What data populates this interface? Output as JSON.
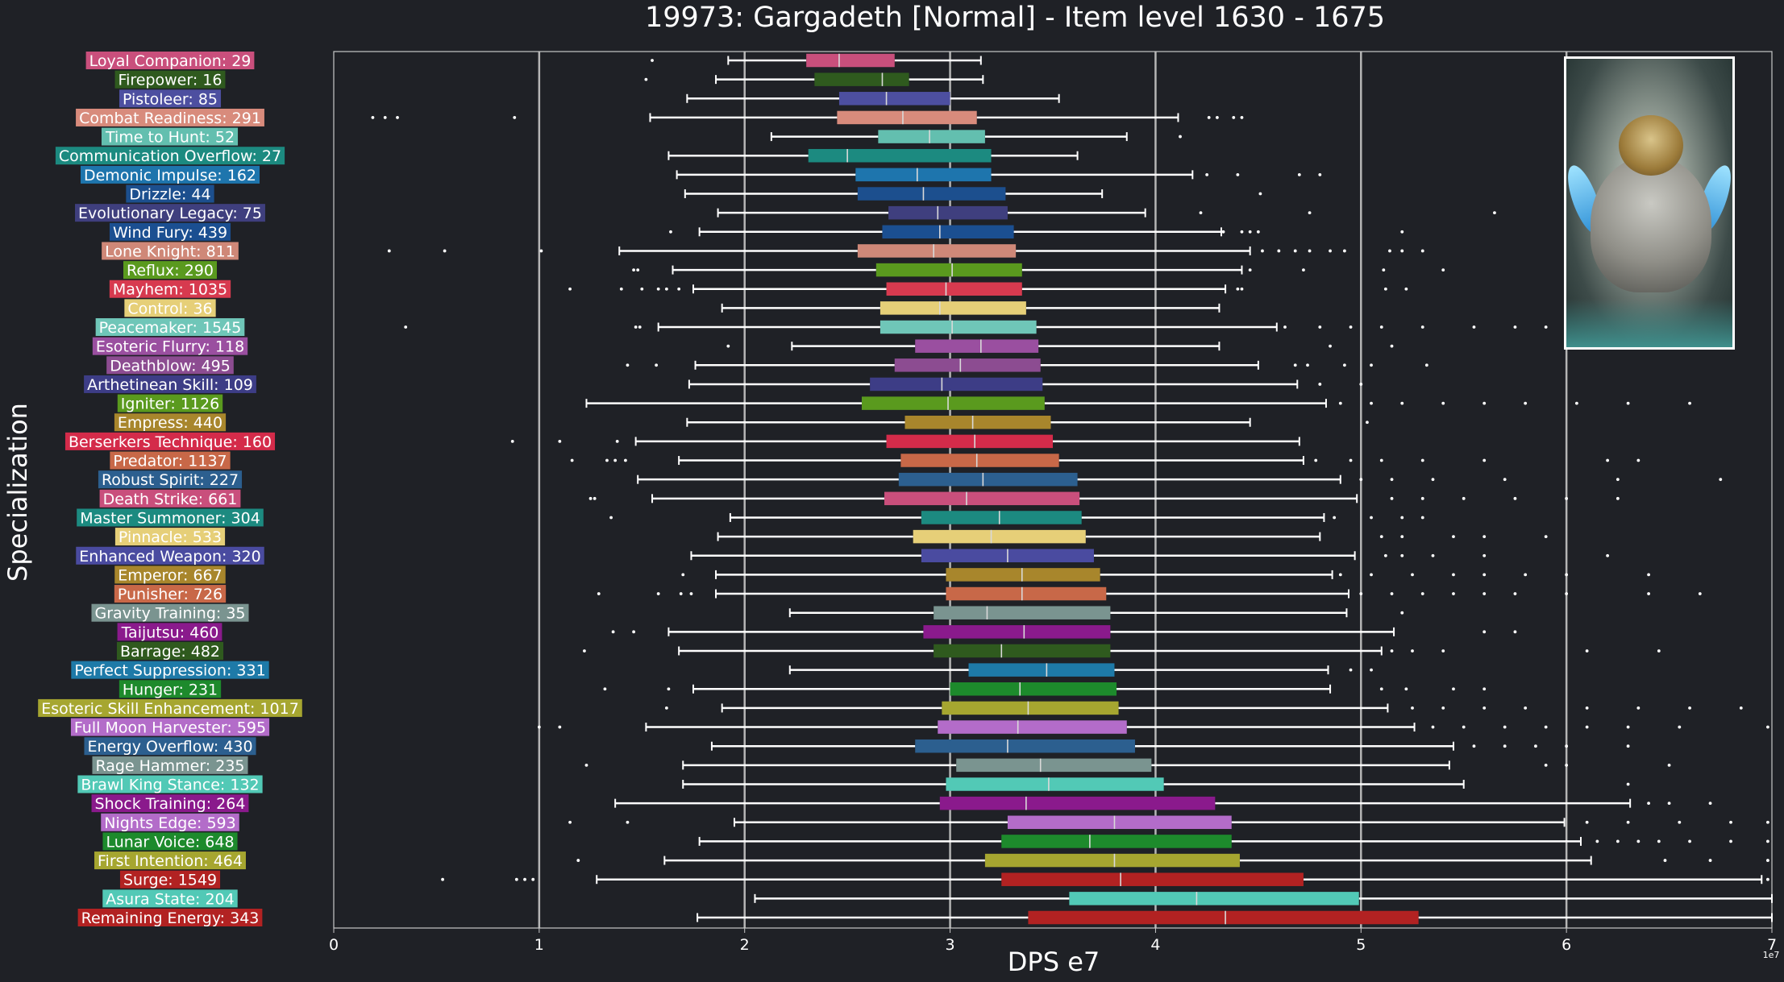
{
  "chart_data": {
    "type": "box",
    "title": "19973: Gargadeth [Normal] - Item level 1630 - 1675",
    "xlabel": "DPS e7",
    "ylabel": "Specialization",
    "x_exponent": "1e7",
    "xlim": [
      0,
      7
    ],
    "x_ticks": [
      "0",
      "1",
      "2",
      "3",
      "4",
      "5",
      "6",
      "7"
    ],
    "grid": "vertical",
    "categories": [
      {
        "label": "Loyal Companion: 29",
        "color": "#c94f7c",
        "whisker_low": 1.92,
        "q1": 2.3,
        "median": 2.46,
        "q3": 2.73,
        "whisker_high": 3.15,
        "outliers": [
          1.55
        ]
      },
      {
        "label": "Firepower: 16",
        "color": "#2f5a1e",
        "whisker_low": 1.86,
        "q1": 2.34,
        "median": 2.67,
        "q3": 2.8,
        "whisker_high": 3.16,
        "outliers": [
          1.52
        ]
      },
      {
        "label": "Pistoleer: 85",
        "color": "#4d4fa0",
        "whisker_low": 1.72,
        "q1": 2.46,
        "median": 2.69,
        "q3": 3.0,
        "whisker_high": 3.53,
        "outliers": []
      },
      {
        "label": "Combat Readiness: 291",
        "color": "#d88b7c",
        "whisker_low": 1.54,
        "q1": 2.45,
        "median": 2.77,
        "q3": 3.13,
        "whisker_high": 4.11,
        "outliers": [
          0.19,
          0.25,
          0.31,
          0.88,
          4.26,
          4.3,
          4.38,
          4.42
        ]
      },
      {
        "label": "Time to Hunt: 52",
        "color": "#63bfaf",
        "whisker_low": 2.13,
        "q1": 2.65,
        "median": 2.9,
        "q3": 3.17,
        "whisker_high": 3.86,
        "outliers": [
          4.12
        ]
      },
      {
        "label": "Communication Overflow: 27",
        "color": "#1c8a80",
        "whisker_low": 1.63,
        "q1": 2.31,
        "median": 2.5,
        "q3": 3.2,
        "whisker_high": 3.62,
        "outliers": []
      },
      {
        "label": "Demonic Impulse: 162",
        "color": "#1e75ad",
        "whisker_low": 1.67,
        "q1": 2.54,
        "median": 2.84,
        "q3": 3.2,
        "whisker_high": 4.18,
        "outliers": [
          4.25,
          4.4,
          4.7,
          4.8
        ]
      },
      {
        "label": "Drizzle: 44",
        "color": "#1c4f8e",
        "whisker_low": 1.71,
        "q1": 2.55,
        "median": 2.87,
        "q3": 3.27,
        "whisker_high": 3.74,
        "outliers": [
          4.51
        ]
      },
      {
        "label": "Evolutionary Legacy: 75",
        "color": "#3f3f7e",
        "whisker_low": 1.87,
        "q1": 2.7,
        "median": 2.94,
        "q3": 3.28,
        "whisker_high": 3.95,
        "outliers": [
          4.22,
          4.75,
          5.65
        ]
      },
      {
        "label": "Wind Fury: 439",
        "color": "#1b4f91",
        "whisker_low": 1.78,
        "q1": 2.67,
        "median": 2.95,
        "q3": 3.31,
        "whisker_high": 4.32,
        "outliers": [
          1.64,
          4.33,
          4.42,
          4.46,
          4.5,
          5.2
        ]
      },
      {
        "label": "Lone Knight: 811",
        "color": "#cf8878",
        "whisker_low": 1.39,
        "q1": 2.55,
        "median": 2.92,
        "q3": 3.32,
        "whisker_high": 4.46,
        "outliers": [
          0.27,
          0.54,
          1.01,
          4.52,
          4.6,
          4.68,
          4.75,
          4.85,
          4.92,
          5.14,
          5.2,
          5.3
        ]
      },
      {
        "label": "Reflux: 290",
        "color": "#5a9a1e",
        "whisker_low": 1.65,
        "q1": 2.64,
        "median": 3.01,
        "q3": 3.35,
        "whisker_high": 4.42,
        "outliers": [
          1.46,
          1.48,
          4.46,
          4.72,
          5.11,
          5.4
        ]
      },
      {
        "label": "Mayhem: 1035",
        "color": "#d73a4f",
        "whisker_low": 1.75,
        "q1": 2.69,
        "median": 2.98,
        "q3": 3.35,
        "whisker_high": 4.34,
        "outliers": [
          1.15,
          1.4,
          1.5,
          1.58,
          1.62,
          1.68,
          4.4,
          4.42,
          5.12,
          5.22
        ]
      },
      {
        "label": "Control: 36",
        "color": "#e6cf78",
        "whisker_low": 1.89,
        "q1": 2.66,
        "median": 2.95,
        "q3": 3.37,
        "whisker_high": 4.31,
        "outliers": []
      },
      {
        "label": "Peacemaker: 1545",
        "color": "#6fc6b8",
        "whisker_low": 1.58,
        "q1": 2.66,
        "median": 3.01,
        "q3": 3.42,
        "whisker_high": 4.59,
        "outliers": [
          0.35,
          1.47,
          1.49,
          4.63,
          4.8,
          4.95,
          5.1,
          5.3,
          5.55,
          5.75,
          5.9
        ]
      },
      {
        "label": "Esoteric Flurry: 118",
        "color": "#9a4fa0",
        "whisker_low": 2.23,
        "q1": 2.83,
        "median": 3.15,
        "q3": 3.43,
        "whisker_high": 4.31,
        "outliers": [
          1.92,
          4.85,
          5.15
        ]
      },
      {
        "label": "Deathblow: 495",
        "color": "#8c4c91",
        "whisker_low": 1.76,
        "q1": 2.73,
        "median": 3.05,
        "q3": 3.44,
        "whisker_high": 4.5,
        "outliers": [
          1.43,
          1.57,
          4.68,
          4.74,
          4.92,
          5.05,
          5.32
        ]
      },
      {
        "label": "Arthetinean Skill: 109",
        "color": "#3d3d86",
        "whisker_low": 1.73,
        "q1": 2.61,
        "median": 2.96,
        "q3": 3.45,
        "whisker_high": 4.69,
        "outliers": [
          4.8,
          5.0
        ]
      },
      {
        "label": "Igniter: 1126",
        "color": "#5a9a1e",
        "whisker_low": 1.23,
        "q1": 2.57,
        "median": 2.99,
        "q3": 3.46,
        "whisker_high": 4.83,
        "outliers": [
          4.9,
          5.05,
          5.2,
          5.4,
          5.6,
          5.8,
          6.05,
          6.3,
          6.6
        ]
      },
      {
        "label": "Empress: 440",
        "color": "#a8862c",
        "whisker_low": 1.72,
        "q1": 2.78,
        "median": 3.11,
        "q3": 3.49,
        "whisker_high": 4.46,
        "outliers": [
          5.03
        ]
      },
      {
        "label": "Berserkers Technique: 160",
        "color": "#d42b4a",
        "whisker_low": 1.47,
        "q1": 2.69,
        "median": 3.12,
        "q3": 3.5,
        "whisker_high": 4.7,
        "outliers": [
          0.87,
          1.1,
          1.38
        ]
      },
      {
        "label": "Predator: 1137",
        "color": "#c86848",
        "whisker_low": 1.68,
        "q1": 2.76,
        "median": 3.13,
        "q3": 3.53,
        "whisker_high": 4.72,
        "outliers": [
          1.16,
          1.33,
          1.37,
          1.42,
          4.78,
          4.95,
          5.1,
          5.3,
          5.6,
          6.2,
          6.35
        ]
      },
      {
        "label": "Robust Spirit: 227",
        "color": "#2c5f8f",
        "whisker_low": 1.48,
        "q1": 2.75,
        "median": 3.16,
        "q3": 3.62,
        "whisker_high": 4.9,
        "outliers": [
          5.0,
          5.15,
          5.35,
          5.7,
          6.25,
          6.75
        ]
      },
      {
        "label": "Death Strike: 661",
        "color": "#c94f7c",
        "whisker_low": 1.55,
        "q1": 2.68,
        "median": 3.08,
        "q3": 3.63,
        "whisker_high": 4.98,
        "outliers": [
          1.25,
          1.27,
          5.15,
          5.3,
          5.5,
          5.75,
          6.0,
          6.25
        ]
      },
      {
        "label": "Master Summoner: 304",
        "color": "#1c8a80",
        "whisker_low": 1.93,
        "q1": 2.86,
        "median": 3.24,
        "q3": 3.64,
        "whisker_high": 4.82,
        "outliers": [
          1.35,
          4.87,
          5.05,
          5.2,
          5.3
        ]
      },
      {
        "label": "Pinnacle: 533",
        "color": "#e6cf78",
        "whisker_low": 1.87,
        "q1": 2.82,
        "median": 3.2,
        "q3": 3.66,
        "whisker_high": 4.8,
        "outliers": [
          5.1,
          5.2,
          5.45,
          5.6,
          5.9
        ]
      },
      {
        "label": "Enhanced Weapon: 320",
        "color": "#4a4ba0",
        "whisker_low": 1.74,
        "q1": 2.86,
        "median": 3.28,
        "q3": 3.7,
        "whisker_high": 4.97,
        "outliers": [
          5.12,
          5.2,
          5.35,
          5.6,
          6.2
        ]
      },
      {
        "label": "Emperor: 667",
        "color": "#a8862c",
        "whisker_low": 1.86,
        "q1": 2.98,
        "median": 3.35,
        "q3": 3.73,
        "whisker_high": 4.86,
        "outliers": [
          1.7,
          4.9,
          5.05,
          5.25,
          5.45,
          5.6,
          5.8,
          6.0,
          6.4
        ]
      },
      {
        "label": "Punisher: 726",
        "color": "#c86848",
        "whisker_low": 1.86,
        "q1": 2.98,
        "median": 3.35,
        "q3": 3.76,
        "whisker_high": 4.94,
        "outliers": [
          1.29,
          1.58,
          1.69,
          1.74,
          5.0,
          5.15,
          5.3,
          5.45,
          5.6,
          5.75,
          6.0,
          6.4,
          6.65
        ]
      },
      {
        "label": "Gravity Training: 35",
        "color": "#7a9490",
        "whisker_low": 2.22,
        "q1": 2.92,
        "median": 3.18,
        "q3": 3.78,
        "whisker_high": 4.93,
        "outliers": [
          5.2
        ]
      },
      {
        "label": "Taijutsu: 460",
        "color": "#8a1a8c",
        "whisker_low": 1.63,
        "q1": 2.87,
        "median": 3.36,
        "q3": 3.78,
        "whisker_high": 5.16,
        "outliers": [
          1.36,
          1.46,
          5.6,
          5.75
        ]
      },
      {
        "label": "Barrage: 482",
        "color": "#2f5a1e",
        "whisker_low": 1.68,
        "q1": 2.92,
        "median": 3.25,
        "q3": 3.78,
        "whisker_high": 5.1,
        "outliers": [
          1.22,
          5.15,
          5.25,
          5.4,
          6.1,
          6.45
        ]
      },
      {
        "label": "Perfect Suppression: 331",
        "color": "#1e7aa8",
        "whisker_low": 2.22,
        "q1": 3.09,
        "median": 3.47,
        "q3": 3.8,
        "whisker_high": 4.84,
        "outliers": [
          4.95,
          5.05
        ]
      },
      {
        "label": "Hunger: 231",
        "color": "#1d8a2c",
        "whisker_low": 1.75,
        "q1": 3.0,
        "median": 3.34,
        "q3": 3.81,
        "whisker_high": 4.85,
        "outliers": [
          1.32,
          1.63,
          5.1,
          5.22,
          5.45,
          5.6
        ]
      },
      {
        "label": "Esoteric Skill Enhancement: 1017",
        "color": "#a6a630",
        "whisker_low": 1.89,
        "q1": 2.96,
        "median": 3.38,
        "q3": 3.82,
        "whisker_high": 5.13,
        "outliers": [
          1.62,
          5.25,
          5.4,
          5.6,
          5.8,
          6.1,
          6.35,
          6.6,
          6.85
        ]
      },
      {
        "label": "Full Moon Harvester: 595",
        "color": "#b36cc9",
        "whisker_low": 1.52,
        "q1": 2.94,
        "median": 3.33,
        "q3": 3.86,
        "whisker_high": 5.26,
        "outliers": [
          1.0,
          1.1,
          5.35,
          5.5,
          5.7,
          5.9,
          6.1,
          6.3,
          6.55,
          6.98
        ]
      },
      {
        "label": "Energy Overflow: 430",
        "color": "#2c5f8f",
        "whisker_low": 1.84,
        "q1": 2.83,
        "median": 3.28,
        "q3": 3.9,
        "whisker_high": 5.45,
        "outliers": [
          5.55,
          5.7,
          5.85,
          6.0,
          6.3
        ]
      },
      {
        "label": "Rage Hammer: 235",
        "color": "#7a9490",
        "whisker_low": 1.7,
        "q1": 3.03,
        "median": 3.44,
        "q3": 3.98,
        "whisker_high": 5.43,
        "outliers": [
          1.23,
          5.9,
          6.0,
          6.5
        ]
      },
      {
        "label": "Brawl King Stance: 132",
        "color": "#52c9b6",
        "whisker_low": 1.7,
        "q1": 2.98,
        "median": 3.48,
        "q3": 4.04,
        "whisker_high": 5.5,
        "outliers": [
          6.3
        ]
      },
      {
        "label": "Shock Training: 264",
        "color": "#8a1a8c",
        "whisker_low": 1.37,
        "q1": 2.95,
        "median": 3.37,
        "q3": 4.29,
        "whisker_high": 6.31,
        "outliers": [
          6.4,
          6.5,
          6.7
        ]
      },
      {
        "label": "Nights Edge: 593",
        "color": "#b36cc9",
        "whisker_low": 1.95,
        "q1": 3.28,
        "median": 3.8,
        "q3": 4.37,
        "whisker_high": 5.99,
        "outliers": [
          1.15,
          1.43,
          6.1,
          6.3,
          6.55,
          6.8,
          6.98
        ]
      },
      {
        "label": "Lunar Voice: 648",
        "color": "#1d8a2c",
        "whisker_low": 1.78,
        "q1": 3.25,
        "median": 3.68,
        "q3": 4.37,
        "whisker_high": 6.07,
        "outliers": [
          6.15,
          6.25,
          6.35,
          6.45,
          6.6,
          6.8,
          6.98
        ]
      },
      {
        "label": "First Intention: 464",
        "color": "#a6a630",
        "whisker_low": 1.61,
        "q1": 3.17,
        "median": 3.8,
        "q3": 4.41,
        "whisker_high": 6.12,
        "outliers": [
          1.19,
          6.48,
          6.7,
          6.98
        ]
      },
      {
        "label": "Surge: 1549",
        "color": "#b22222",
        "whisker_low": 1.28,
        "q1": 3.25,
        "median": 3.83,
        "q3": 4.72,
        "whisker_high": 6.95,
        "outliers": [
          0.53,
          0.89,
          0.93,
          0.97,
          6.98
        ]
      },
      {
        "label": "Asura State: 204",
        "color": "#52c9b6",
        "whisker_low": 2.05,
        "q1": 3.58,
        "median": 4.2,
        "q3": 4.99,
        "whisker_high": 7.0,
        "outliers": []
      },
      {
        "label": "Remaining Energy: 343",
        "color": "#b22222",
        "whisker_low": 1.77,
        "q1": 3.38,
        "median": 4.34,
        "q3": 5.28,
        "whisker_high": 7.0,
        "outliers": []
      }
    ]
  }
}
